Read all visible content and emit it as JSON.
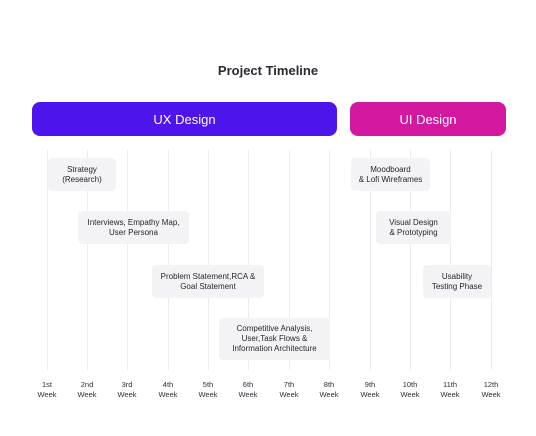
{
  "title": "Project Timeline",
  "phases": {
    "ux": "UX Design",
    "ui": "UI Design"
  },
  "colors": {
    "ux": "#4d15ec",
    "ui": "#d2189f",
    "task_bg": "#f3f3f5"
  },
  "tasks": [
    {
      "line1": "Strategy",
      "line2": "(Research)",
      "line3": ""
    },
    {
      "line1": "Interviews, Empathy Map,",
      "line2": "User Persona",
      "line3": ""
    },
    {
      "line1": "Problem Statement,RCA &",
      "line2": "Goal Statement",
      "line3": ""
    },
    {
      "line1": "Competitive Analysis,",
      "line2": "User,Task Flows &",
      "line3": "Information Architecture"
    },
    {
      "line1": "Moodboard",
      "line2": "& Lofi Wireframes",
      "line3": ""
    },
    {
      "line1": "Visual Design",
      "line2": "& Prototyping",
      "line3": ""
    },
    {
      "line1": "Usability",
      "line2": "Testing Phase",
      "line3": ""
    }
  ],
  "weeks": [
    {
      "num": "1st",
      "unit": "Week"
    },
    {
      "num": "2nd",
      "unit": "Week"
    },
    {
      "num": "3rd",
      "unit": "Week"
    },
    {
      "num": "4th",
      "unit": "Week"
    },
    {
      "num": "5th",
      "unit": "Week"
    },
    {
      "num": "6th",
      "unit": "Week"
    },
    {
      "num": "7th",
      "unit": "Week"
    },
    {
      "num": "8th",
      "unit": "Week"
    },
    {
      "num": "9th",
      "unit": "Week"
    },
    {
      "num": "10th",
      "unit": "Week"
    },
    {
      "num": "11th",
      "unit": "Week"
    },
    {
      "num": "12th",
      "unit": "Week"
    }
  ]
}
